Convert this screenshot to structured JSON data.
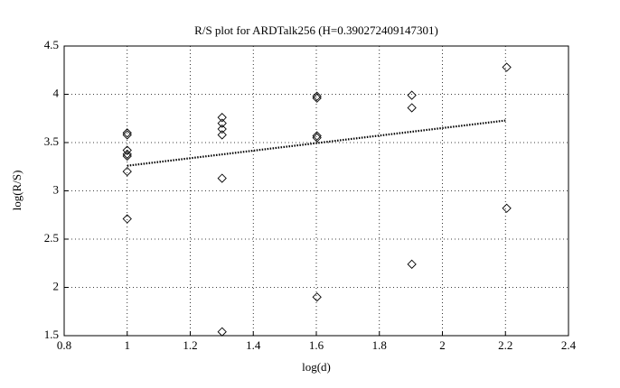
{
  "chart_data": {
    "type": "scatter",
    "title": "R/S plot for ARDTalk256 (H=0.390272409147301)",
    "x_label": "log(d)",
    "y_label": "log(R/S)",
    "xlim": [
      0.8,
      2.4
    ],
    "xticks": [
      0.8,
      1,
      1.2,
      1.4,
      1.6,
      1.8,
      2,
      2.2,
      2.4
    ],
    "ylim": [
      1.5,
      4.5
    ],
    "yticks": [
      1.5,
      2,
      2.5,
      3,
      3.5,
      4,
      4.5
    ],
    "grid": true,
    "series": [
      {
        "kind": "scatter",
        "marker": "diamond",
        "color": "#000000",
        "x": [
          1,
          1,
          1,
          1,
          1,
          1,
          1,
          1.301,
          1.301,
          1.301,
          1.301,
          1.301,
          1.301,
          1.602,
          1.602,
          1.602,
          1.602,
          1.602,
          1.903,
          1.903,
          1.903,
          2.204,
          2.204
        ],
        "values": [
          3.6,
          3.58,
          3.42,
          3.38,
          3.36,
          3.2,
          2.71,
          3.76,
          3.7,
          3.64,
          3.58,
          3.13,
          1.54,
          3.98,
          3.96,
          3.57,
          3.55,
          1.9,
          3.99,
          3.86,
          2.24,
          4.28,
          2.82
        ]
      },
      {
        "kind": "line",
        "style": "dotted",
        "color": "#000000",
        "x": [
          1,
          2.204
        ],
        "values": [
          3.26,
          3.73
        ]
      }
    ]
  }
}
